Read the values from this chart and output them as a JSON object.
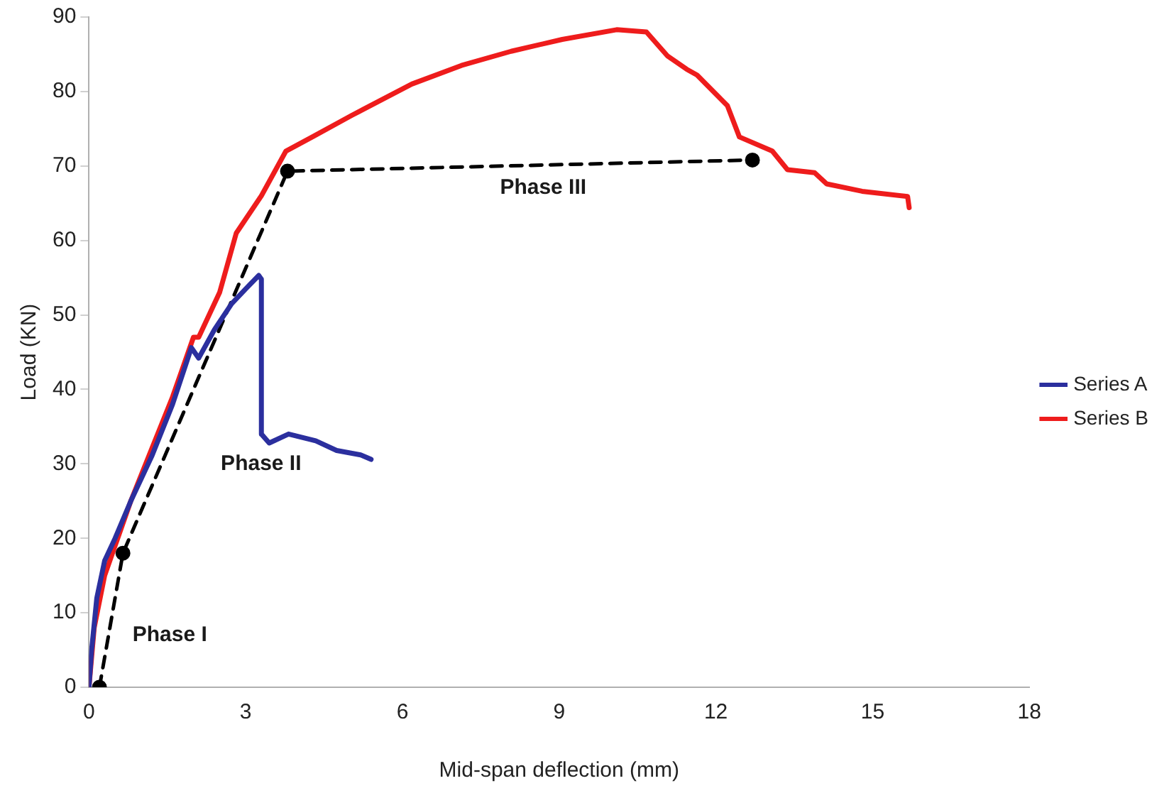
{
  "chart_data": {
    "type": "line",
    "xlabel": "Mid-span deflection (mm)",
    "ylabel": "Load (KN)",
    "xlim": [
      0,
      18
    ],
    "xticks": [
      0,
      3,
      6,
      9,
      12,
      15,
      18
    ],
    "ylim": [
      0,
      90
    ],
    "yticks": [
      0,
      10,
      20,
      30,
      40,
      50,
      60,
      70,
      80,
      90
    ],
    "grid": false,
    "legend": "right",
    "marker": "none",
    "series": [
      {
        "name": "Series A",
        "color": "#2b2f9e",
        "x": [
          0,
          0.05,
          0.15,
          0.3,
          0.5,
          0.8,
          1.2,
          1.6,
          1.96,
          2.1,
          2.4,
          2.73,
          3.0,
          3.25,
          3.3,
          3.3,
          3.45,
          3.82,
          4.34,
          4.74,
          5.2,
          5.4
        ],
        "values": [
          0,
          5,
          12,
          17,
          20,
          25,
          31,
          38,
          45.6,
          44.2,
          48,
          51.5,
          53.5,
          55.3,
          54.8,
          34,
          32.8,
          34,
          33.1,
          31.8,
          31.2,
          30.6
        ]
      },
      {
        "name": "Series B",
        "color": "#ee1c1c",
        "x": [
          0,
          0.1,
          0.3,
          0.5,
          0.8,
          1.2,
          1.6,
          1.9,
          2.0,
          2.1,
          2.5,
          2.82,
          3.3,
          3.77,
          4.3,
          5.03,
          6.18,
          7.13,
          8.08,
          9.06,
          10.1,
          10.67,
          11.07,
          11.44,
          11.64,
          12.22,
          12.45,
          13.08,
          13.37,
          13.89,
          14.12,
          14.8,
          15.67,
          15.7
        ],
        "values": [
          0,
          8,
          15,
          19,
          25,
          32,
          39,
          45,
          47,
          47,
          53,
          61,
          66,
          72,
          74,
          76.8,
          81,
          83.5,
          85.4,
          87,
          88.3,
          88,
          84.8,
          83,
          82.2,
          78.1,
          73.9,
          72,
          69.5,
          69.1,
          67.6,
          66.6,
          65.9,
          64.4
        ]
      },
      {
        "color": "#000000",
        "marker": "circle",
        "line_style": "dashed",
        "x": [
          0.2,
          0.65,
          3.8,
          12.7
        ],
        "values": [
          0,
          18,
          69.3,
          70.8
        ]
      }
    ],
    "annotations": [
      "Phase I",
      "Phase II",
      "Phase III"
    ]
  }
}
